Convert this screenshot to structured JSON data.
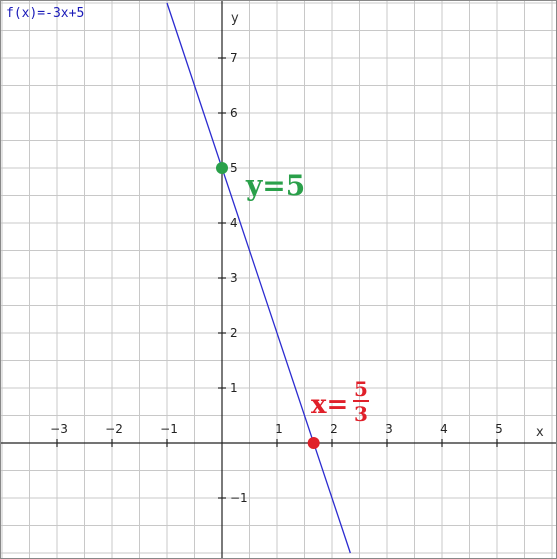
{
  "chart_data": {
    "type": "line",
    "function_label": "f(x)=-3x+5",
    "xlabel": "x",
    "ylabel": "y",
    "xlim": [
      -4,
      6
    ],
    "ylim": [
      -2,
      8
    ],
    "x_ticks": [
      -3,
      -2,
      -1,
      1,
      2,
      3,
      4,
      5
    ],
    "x_tick_labels": [
      "−3",
      "−2",
      "−1",
      "1",
      "2",
      "3",
      "4",
      "5"
    ],
    "y_ticks": [
      -1,
      1,
      2,
      3,
      4,
      5,
      6,
      7
    ],
    "y_tick_labels": [
      "−1",
      "1",
      "2",
      "3",
      "4",
      "5",
      "6",
      "7"
    ],
    "grid": true,
    "grid_step": 0.5,
    "series": [
      {
        "slope": -3,
        "intercept": 5,
        "color": "#2b2bd0"
      }
    ],
    "points": [
      {
        "x": 0,
        "y": 5,
        "color": "#2aa04a",
        "annotation": "y=5"
      },
      {
        "x": 1.6667,
        "y": 0,
        "color": "#e0202a",
        "annotation_prefix": "x=",
        "numerator": "5",
        "denominator": "3"
      }
    ]
  }
}
